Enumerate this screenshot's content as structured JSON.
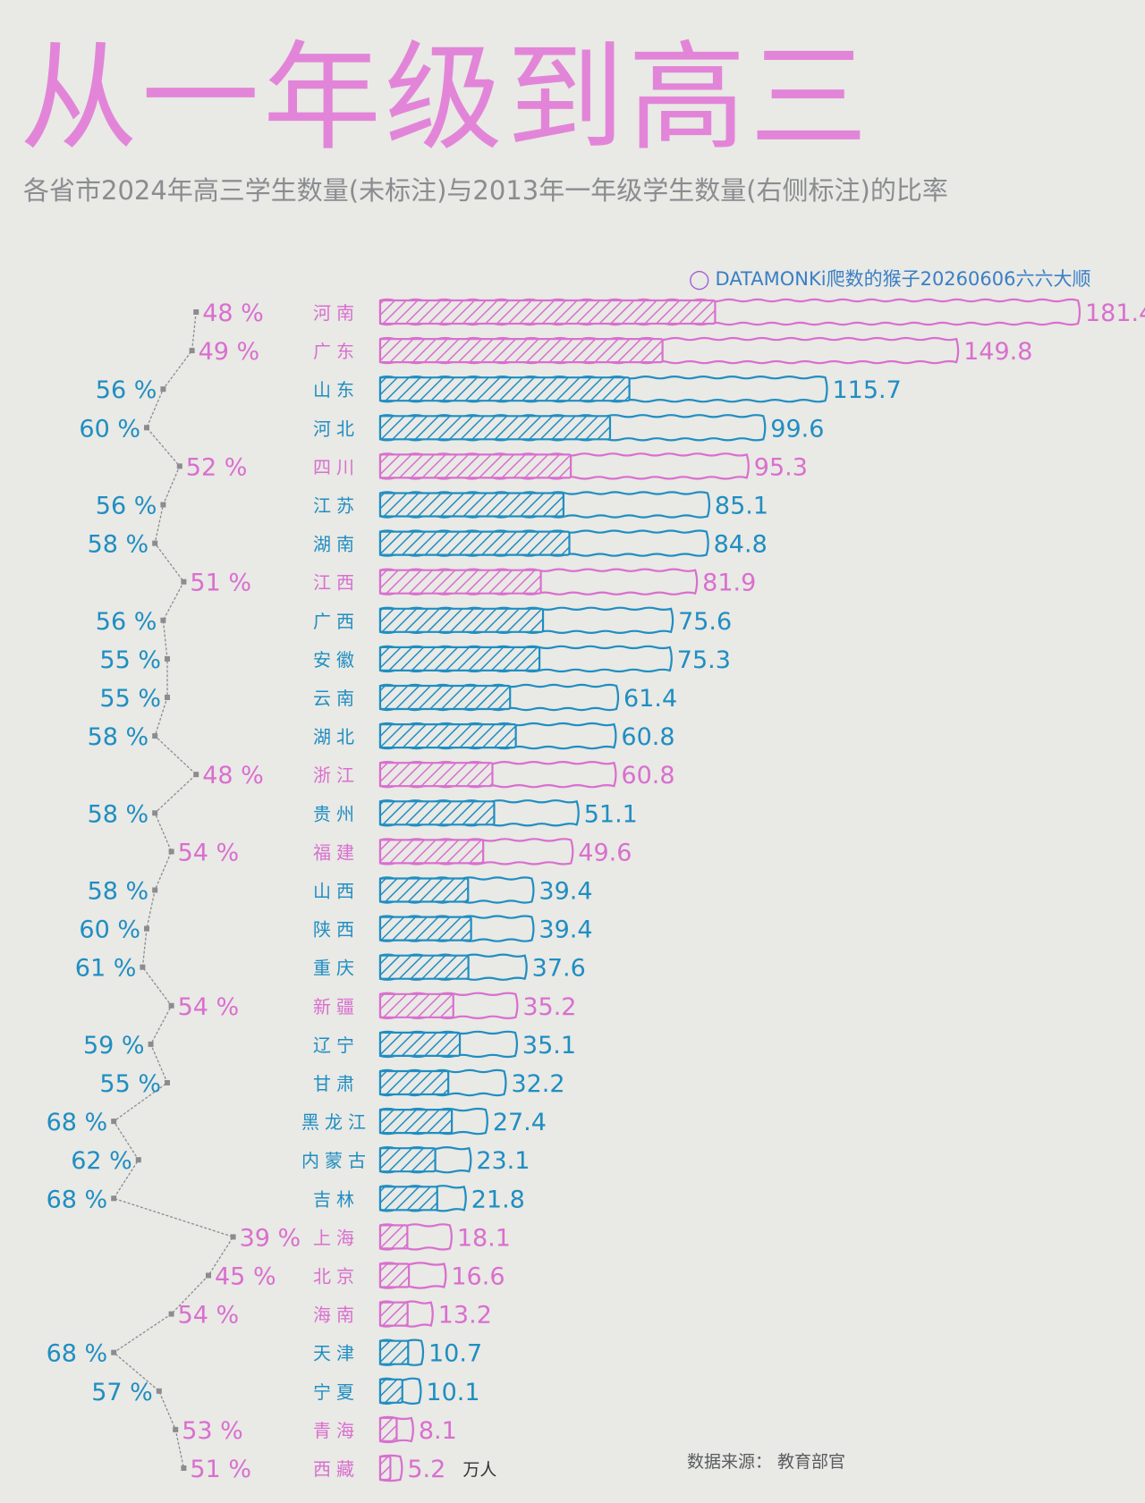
{
  "title": "从一年级到高三",
  "subtitle": "各省市2024年高三学生数量(未标注)与2013年一年级学生数量(右侧标注)的比率",
  "watermark": "DATAMONKi爬数的猴子20260606六六大顺",
  "source": "数据来源：  教育部官",
  "unit": "万人",
  "colors": {
    "pink": "#d96fcf",
    "blue": "#1f8ec2",
    "background": "#e9e9e5",
    "connector": "#8a8c90"
  },
  "chart_data": {
    "type": "bar",
    "categories": [
      "河南",
      "广东",
      "山东",
      "河北",
      "四川",
      "江苏",
      "湖南",
      "江西",
      "广西",
      "安徽",
      "云南",
      "湖北",
      "浙江",
      "贵州",
      "福建",
      "山西",
      "陕西",
      "重庆",
      "新疆",
      "辽宁",
      "甘肃",
      "黑龙江",
      "内蒙古",
      "吉林",
      "上海",
      "北京",
      "海南",
      "天津",
      "宁夏",
      "青海",
      "西藏"
    ],
    "series": [
      {
        "values": [
          181.4,
          149.8,
          115.7,
          99.6,
          95.3,
          85.1,
          84.8,
          81.9,
          75.6,
          75.3,
          61.4,
          60.8,
          60.8,
          51.1,
          49.6,
          39.4,
          39.4,
          37.6,
          35.2,
          35.1,
          32.2,
          27.4,
          23.1,
          21.8,
          18.1,
          16.6,
          13.2,
          10.7,
          10.1,
          8.1,
          5.2
        ]
      },
      {
        "values": [
          48,
          49,
          56,
          60,
          52,
          56,
          58,
          51,
          56,
          55,
          55,
          58,
          48,
          58,
          54,
          58,
          60,
          61,
          54,
          59,
          55,
          68,
          62,
          68,
          39,
          45,
          54,
          68,
          57,
          53,
          51
        ]
      }
    ],
    "value_labels": [
      "181.4",
      "149.8",
      "115.7",
      "99.6",
      "95.3",
      "85.1",
      "84.8",
      "81.9",
      "75.6",
      "75.3",
      "61.4",
      "60.8",
      "60.8",
      "51.1",
      "49.6",
      "39.4",
      "39.4",
      "37.6",
      "35.2",
      "35.1",
      "32.2",
      "27.4",
      "23.1",
      "21.8",
      "18.1",
      "16.6",
      "13.2",
      "10.7",
      "10.1",
      "8.1",
      "5.2"
    ],
    "ratio_labels": [
      "48 %",
      "49 %",
      "56 %",
      "60 %",
      "52 %",
      "56 %",
      "58 %",
      "51 %",
      "56 %",
      "55 %",
      "55 %",
      "58 %",
      "48 %",
      "58 %",
      "54 %",
      "58 %",
      "60 %",
      "61 %",
      "54 %",
      "59 %",
      "55 %",
      "68 %",
      "62 %",
      "68 %",
      "39 %",
      "45 %",
      "54 %",
      "68 %",
      "57 %",
      "53 %",
      "51 %"
    ],
    "highlight": [
      true,
      true,
      false,
      false,
      true,
      false,
      false,
      true,
      false,
      false,
      false,
      false,
      true,
      false,
      true,
      false,
      false,
      false,
      true,
      false,
      false,
      false,
      false,
      false,
      true,
      true,
      true,
      false,
      false,
      true,
      true
    ],
    "grid": false
  }
}
